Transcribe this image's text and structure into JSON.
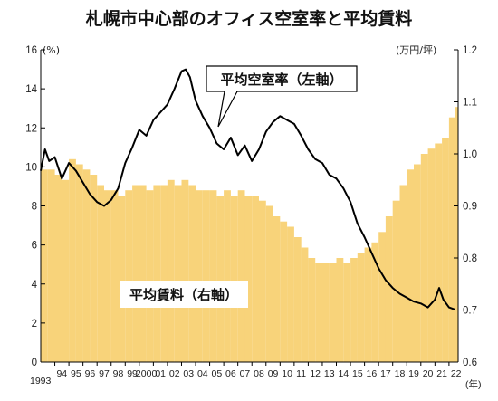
{
  "chart_data": {
    "type": "bar+line",
    "title": "札幌市中心部のオフィス空室率と平均賃料",
    "left_axis_unit": "(%)",
    "right_axis_unit": "(万円/坪)",
    "x_unit": "(年)",
    "left_ylim": [
      0,
      16
    ],
    "left_ticks": [
      "0",
      "2",
      "4",
      "6",
      "8",
      "10",
      "12",
      "14",
      "16"
    ],
    "right_ylim": [
      0.6,
      1.2
    ],
    "right_ticks": [
      "0.6",
      "0.7",
      "0.8",
      "0.9",
      "1.0",
      "1.1",
      "1.2"
    ],
    "x_labels": [
      "1993",
      "94",
      "95",
      "96",
      "97",
      "98",
      "99",
      "2000",
      "01",
      "02",
      "03",
      "04",
      "05",
      "06",
      "07",
      "08",
      "09",
      "10",
      "11",
      "12",
      "13",
      "14",
      "15",
      "16",
      "17",
      "18",
      "19",
      "20",
      "21",
      "22"
    ],
    "grid": false,
    "series": [
      {
        "name": "平均空室率(左軸)",
        "kind": "line",
        "axis": "left",
        "color": "#000000",
        "x": [
          1993.0,
          1993.3,
          1993.6,
          1994.0,
          1994.5,
          1995.0,
          1995.5,
          1996.0,
          1996.5,
          1997.0,
          1997.5,
          1998.0,
          1998.5,
          1999.0,
          1999.5,
          2000.0,
          2000.5,
          2001.0,
          2001.5,
          2002.0,
          2002.5,
          2003.0,
          2003.3,
          2003.6,
          2004.0,
          2004.5,
          2005.0,
          2005.5,
          2006.0,
          2006.5,
          2007.0,
          2007.5,
          2008.0,
          2008.5,
          2009.0,
          2009.5,
          2010.0,
          2010.5,
          2011.0,
          2011.5,
          2012.0,
          2012.5,
          2013.0,
          2013.5,
          2014.0,
          2014.5,
          2015.0,
          2015.5,
          2016.0,
          2016.5,
          2017.0,
          2017.5,
          2018.0,
          2018.5,
          2019.0,
          2019.5,
          2020.0,
          2020.5,
          2021.0,
          2021.3,
          2021.6,
          2022.0,
          2022.4
        ],
        "values": [
          9.8,
          10.9,
          10.3,
          10.5,
          9.4,
          10.2,
          9.8,
          9.2,
          8.6,
          8.2,
          8.0,
          8.3,
          8.9,
          10.2,
          11.0,
          11.9,
          11.6,
          12.4,
          12.8,
          13.2,
          14.0,
          14.9,
          15.0,
          14.6,
          13.4,
          12.6,
          12.0,
          11.2,
          10.9,
          11.5,
          10.6,
          11.1,
          10.3,
          10.9,
          11.8,
          12.3,
          12.6,
          12.4,
          12.2,
          11.6,
          10.9,
          10.4,
          10.2,
          9.6,
          9.4,
          8.9,
          8.2,
          7.1,
          6.4,
          5.6,
          4.8,
          4.2,
          3.8,
          3.5,
          3.3,
          3.1,
          3.0,
          2.8,
          3.2,
          3.8,
          3.2,
          2.8,
          2.7
        ]
      },
      {
        "name": "平均賃料(右軸)",
        "kind": "bar",
        "axis": "right",
        "color": "#f8d37a",
        "x": [
          1993.0,
          1993.5,
          1994.0,
          1994.5,
          1995.0,
          1995.5,
          1996.0,
          1996.5,
          1997.0,
          1997.5,
          1998.0,
          1998.5,
          1999.0,
          1999.5,
          2000.0,
          2000.5,
          2001.0,
          2001.5,
          2002.0,
          2002.5,
          2003.0,
          2003.5,
          2004.0,
          2004.5,
          2005.0,
          2005.5,
          2006.0,
          2006.5,
          2007.0,
          2007.5,
          2008.0,
          2008.5,
          2009.0,
          2009.5,
          2010.0,
          2010.5,
          2011.0,
          2011.5,
          2012.0,
          2012.5,
          2013.0,
          2013.5,
          2014.0,
          2014.5,
          2015.0,
          2015.5,
          2016.0,
          2016.5,
          2017.0,
          2017.5,
          2018.0,
          2018.5,
          2019.0,
          2019.5,
          2020.0,
          2020.5,
          2021.0,
          2021.5,
          2022.0,
          2022.4
        ],
        "values": [
          0.97,
          0.97,
          0.96,
          0.95,
          0.99,
          0.98,
          0.97,
          0.96,
          0.94,
          0.93,
          0.93,
          0.92,
          0.93,
          0.94,
          0.94,
          0.93,
          0.94,
          0.94,
          0.95,
          0.94,
          0.95,
          0.94,
          0.93,
          0.93,
          0.93,
          0.92,
          0.93,
          0.92,
          0.93,
          0.92,
          0.92,
          0.91,
          0.9,
          0.88,
          0.87,
          0.86,
          0.84,
          0.82,
          0.8,
          0.79,
          0.79,
          0.79,
          0.8,
          0.79,
          0.8,
          0.81,
          0.82,
          0.83,
          0.85,
          0.88,
          0.91,
          0.94,
          0.97,
          0.98,
          1.0,
          1.01,
          1.02,
          1.03,
          1.07,
          1.09
        ]
      }
    ],
    "annotations": [
      {
        "text": "平均空室率（左軸）",
        "target_series": 0
      },
      {
        "text": "平均賃料（右軸）",
        "target_series": 1
      }
    ]
  }
}
